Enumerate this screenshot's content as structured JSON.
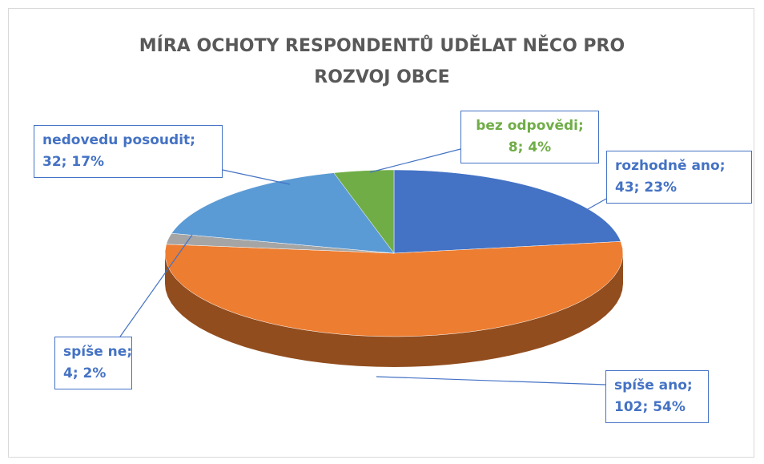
{
  "chart_data": {
    "type": "pie3d",
    "title": "MÍRA OCHOTY RESPONDENTŮ UDĚLAT NĚCO PRO ROZVOJ OBCE",
    "values": [
      43,
      102,
      4,
      32,
      8
    ],
    "value_labels": [
      [
        "rozhodně ano;",
        "43; 23%"
      ],
      [
        "spíše ano;",
        "102; 54%"
      ],
      [
        "spíše ne;",
        "4; 2%"
      ],
      [
        "nedovedu posoudit;",
        "32; 17%"
      ],
      [
        "bez odpovědi;",
        "8; 4%"
      ]
    ],
    "colors": [
      "#4472c4",
      "#ed7d31",
      "#a5a5a5",
      "#5b9bd5",
      "#70ad47"
    ],
    "label_colors": [
      "#4472c4",
      "#4472c4",
      "#4472c4",
      "#4472c4",
      "#70ad47"
    ]
  }
}
